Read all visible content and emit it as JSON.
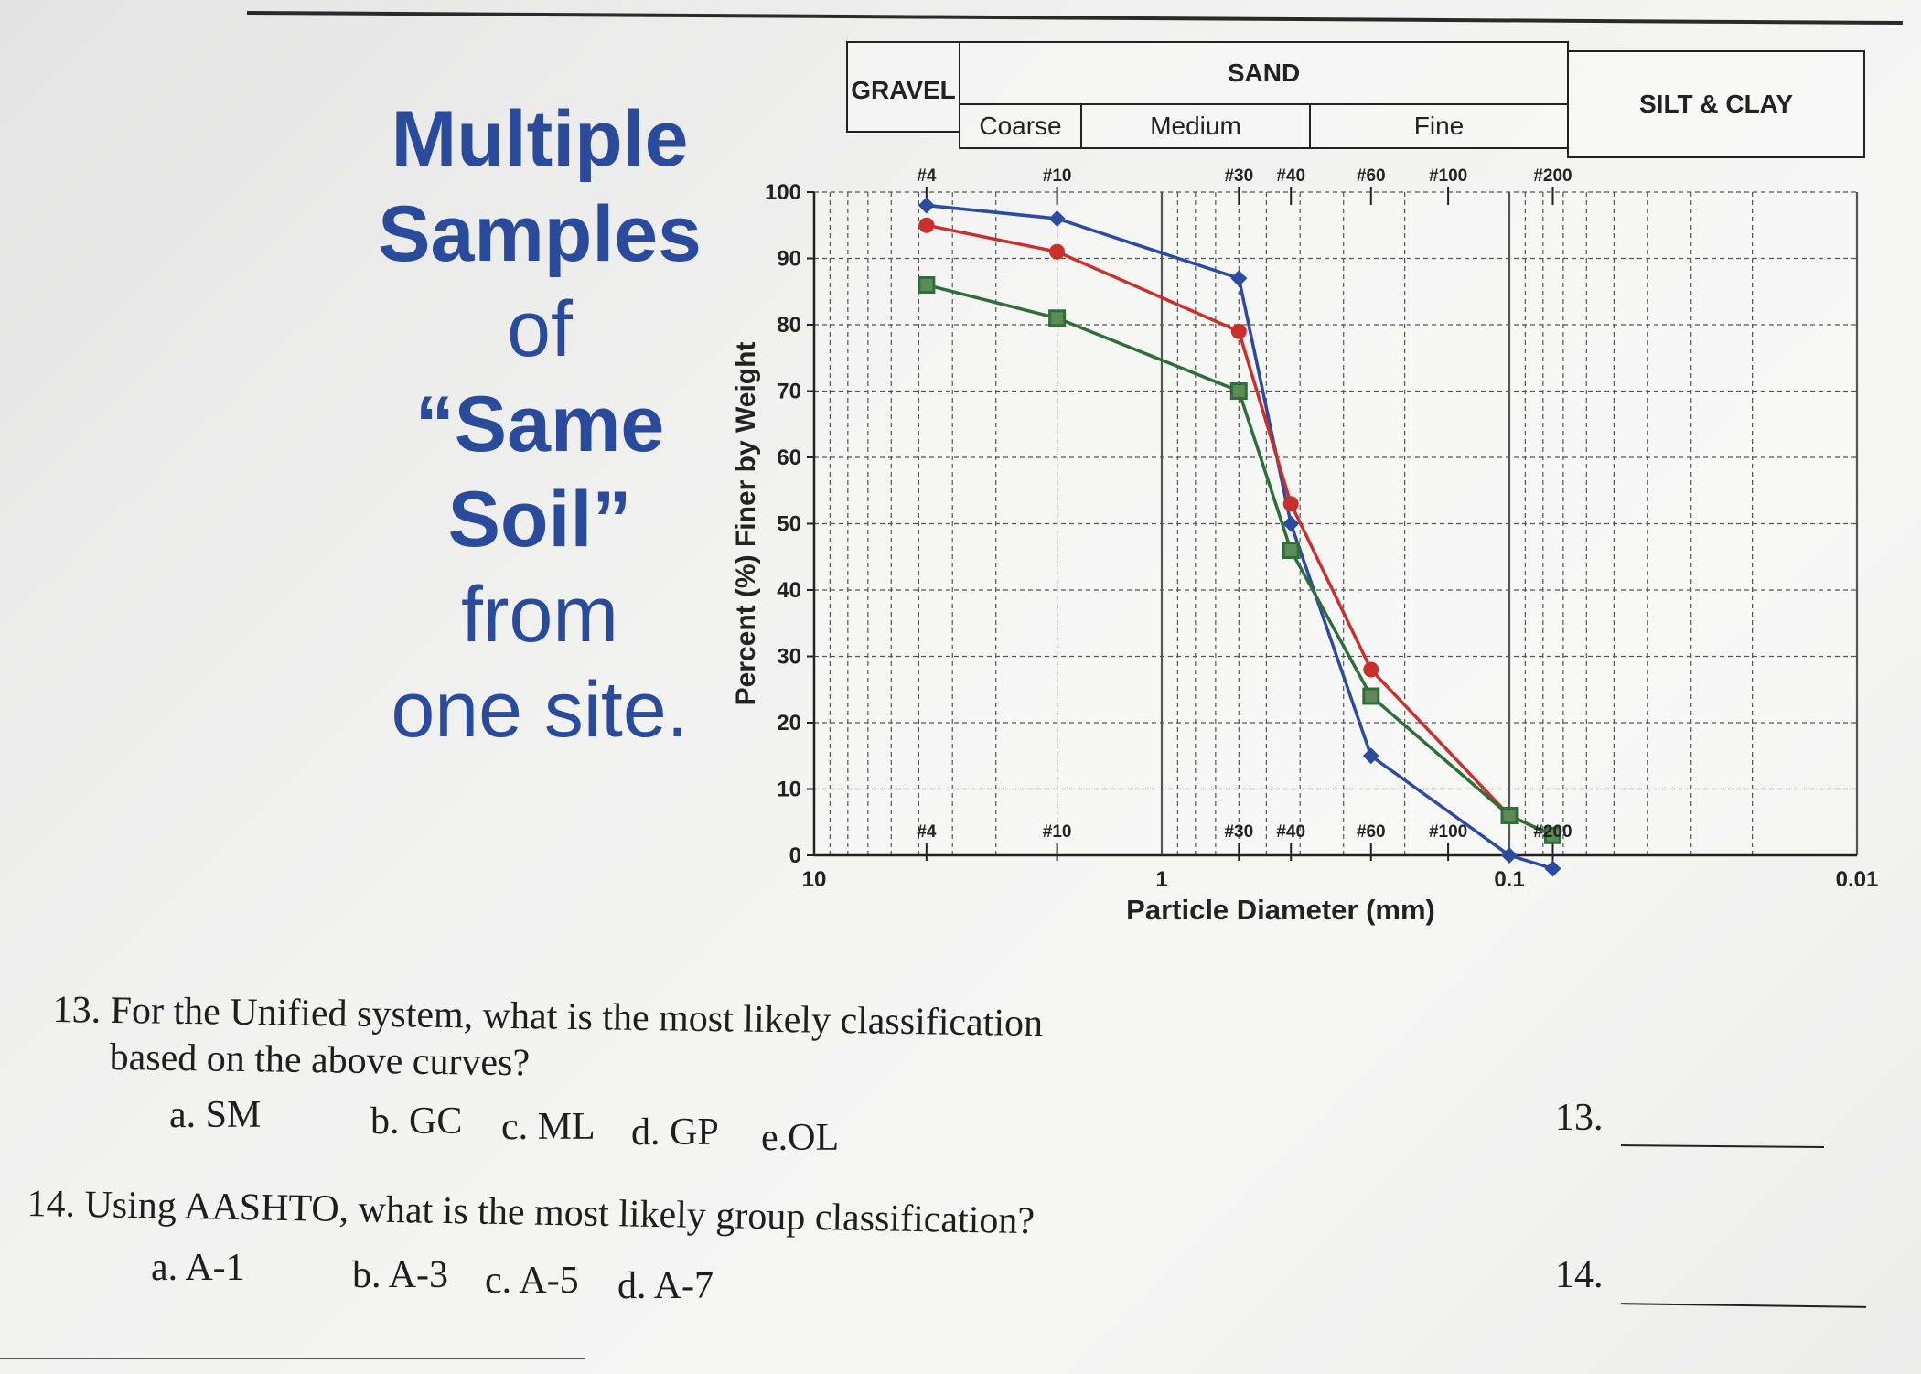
{
  "title_lines": [
    "Multiple",
    "Samples",
    "of",
    "“Same",
    "Soil”",
    "from",
    "one site."
  ],
  "classification_header": {
    "gravel": "GRAVEL",
    "sand": "SAND",
    "silt_clay": "SILT & CLAY",
    "coarse": "Coarse",
    "medium": "Medium",
    "fine": "Fine"
  },
  "chart_data": {
    "type": "line",
    "xlabel": "Particle Diameter (mm)",
    "ylabel": "Percent (%) Finer by Weight",
    "x_scale": "log",
    "x_reversed": true,
    "xlim": [
      10,
      0.01
    ],
    "ylim": [
      0,
      100
    ],
    "grid": true,
    "x_tick_labels": [
      {
        "x": 10,
        "label": "10"
      },
      {
        "x": 1,
        "label": "1"
      },
      {
        "x": 0.1,
        "label": "0.1"
      },
      {
        "x": 0.01,
        "label": "0.01"
      }
    ],
    "y_ticks": [
      0,
      10,
      20,
      30,
      40,
      50,
      60,
      70,
      80,
      90,
      100
    ],
    "sieves": [
      {
        "label": "#4",
        "x": 4.75
      },
      {
        "label": "#10",
        "x": 2.0
      },
      {
        "label": "#30",
        "x": 0.6
      },
      {
        "label": "#40",
        "x": 0.425
      },
      {
        "label": "#60",
        "x": 0.25
      },
      {
        "label": "#100",
        "x": 0.15
      },
      {
        "label": "#200",
        "x": 0.075
      }
    ],
    "series": [
      {
        "color": "#2b4aa0",
        "marker": "diamond",
        "x": [
          4.75,
          2.0,
          0.6,
          0.425,
          0.25,
          0.1,
          0.075
        ],
        "y": [
          98,
          96,
          87,
          50,
          15,
          0,
          -2
        ]
      },
      {
        "color": "#c9302c",
        "marker": "circle",
        "x": [
          4.75,
          2.0,
          0.6,
          0.425,
          0.25,
          0.1,
          0.075
        ],
        "y": [
          95,
          91,
          79,
          53,
          28,
          6,
          3
        ]
      },
      {
        "color": "#2e6e3a",
        "marker": "square",
        "x": [
          4.75,
          2.0,
          0.6,
          0.425,
          0.25,
          0.1,
          0.075
        ],
        "y": [
          86,
          81,
          70,
          46,
          24,
          6,
          3
        ]
      }
    ]
  },
  "questions": {
    "q13": {
      "line1": "13. For the Unified system, what is the most likely classification",
      "line2": "based on the above curves?",
      "options": [
        "a.   SM",
        "b. GC",
        "c. ML",
        "d. GP",
        "e.OL"
      ],
      "number": "13."
    },
    "q14": {
      "line1": "14. Using AASHTO, what is the most likely group classification?",
      "options": [
        "a.   A-1",
        "b. A-3",
        "c. A-5",
        "d. A-7"
      ],
      "number": "14."
    }
  }
}
